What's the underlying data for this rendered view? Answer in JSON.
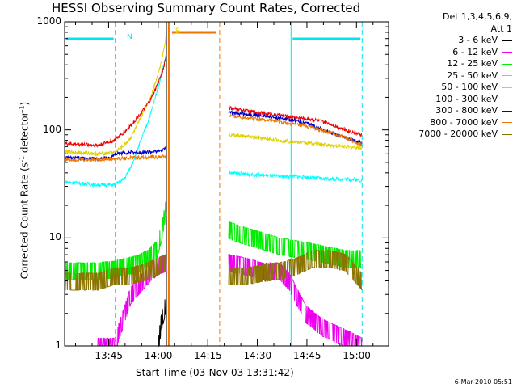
{
  "title": "HESSI Observing Summary Count Rates, Corrected",
  "legend_header": [
    "Det 1,3,4,5,6,9,",
    "Att 1"
  ],
  "xlabel": "Start Time (03-Nov-03 13:31:42)",
  "ylabel_main": "Corrected Count Rate (s",
  "ylabel_sup1": "-1",
  "ylabel_mid": " detector",
  "ylabel_sup2": "-1",
  "ylabel_end": ")",
  "timestamp": "6-Mar-2010 05:51",
  "segment_labels": [
    "N",
    "S"
  ],
  "colors": {
    "frame": "#000000",
    "cyan_marker": "#00e5ee",
    "orange_marker": "#ee7600"
  },
  "chart_data": {
    "type": "line",
    "x_unit": "minutes after 13:31:42",
    "xlim": [
      0,
      98
    ],
    "ylim": [
      1,
      1000
    ],
    "yscale": "log",
    "x_tick_labels": [
      "13:45",
      "14:00",
      "14:15",
      "14:30",
      "14:45",
      "15:00"
    ],
    "x_tick_values": [
      13.3,
      28.3,
      43.3,
      58.3,
      73.3,
      88.3
    ],
    "y_tick_labels": [
      "1",
      "10",
      "100",
      "1000"
    ],
    "y_tick_values": [
      1,
      10,
      100,
      1000
    ],
    "night_intervals": [
      [
        0,
        15.3
      ],
      [
        68.5,
        90
      ]
    ],
    "saa_intervals": [
      [
        31.5,
        46.9
      ]
    ],
    "data_gap": [
      31.5,
      49.5
    ],
    "series": [
      {
        "name": "3 - 6 keV",
        "color": "#000000",
        "x": [
          28.3,
          29.0,
          29.5,
          30.2,
          30.8
        ],
        "y": [
          1.0,
          1.5,
          1.8,
          2.2,
          2.6
        ]
      },
      {
        "name": "6 - 12 keV",
        "color": "#ee00ee",
        "x": [
          10,
          15,
          20,
          25,
          28,
          30.8,
          49.5,
          55,
          60,
          65,
          68,
          70,
          73,
          78,
          85,
          90
        ],
        "y": [
          1.0,
          1.0,
          3.0,
          4.5,
          5.5,
          6.0,
          6.0,
          5.5,
          5.0,
          5.0,
          4.0,
          3.0,
          2.0,
          1.5,
          1.2,
          1.0
        ]
      },
      {
        "name": "12 - 25 keV",
        "color": "#00ee00",
        "x": [
          0,
          10,
          15,
          18,
          22,
          25,
          28,
          29.5,
          30.8,
          49.5,
          55,
          60,
          65,
          70,
          75,
          80,
          85,
          90
        ],
        "y": [
          5.0,
          5.0,
          5.2,
          5.5,
          5.8,
          6.5,
          8.0,
          12.0,
          20.0,
          12.0,
          10.5,
          9.5,
          8.5,
          8.0,
          7.5,
          7.0,
          6.5,
          6.5
        ]
      },
      {
        "name": "25 - 50 keV",
        "color": "#00ffff",
        "x": [
          0,
          10,
          15,
          18,
          20,
          22,
          24,
          26,
          27,
          28,
          29,
          30,
          30.8,
          49.5,
          55,
          60,
          65,
          70,
          75,
          80,
          85,
          90
        ],
        "y": [
          33,
          31,
          31,
          35,
          45,
          65,
          95,
          140,
          180,
          230,
          300,
          400,
          500,
          40,
          39,
          38,
          37,
          37,
          36,
          35,
          35,
          34
        ]
      },
      {
        "name": "50 - 100 keV",
        "color": "#e0d000",
        "x": [
          0,
          10,
          15,
          18,
          20,
          22,
          24,
          26,
          27,
          28,
          29,
          30,
          30.8,
          49.5,
          55,
          60,
          65,
          70,
          75,
          80,
          85,
          90
        ],
        "y": [
          63,
          60,
          62,
          72,
          85,
          110,
          150,
          200,
          250,
          310,
          400,
          560,
          760,
          90,
          87,
          83,
          80,
          77,
          75,
          72,
          70,
          68
        ]
      },
      {
        "name": "100 - 300 keV",
        "color": "#ee0000",
        "x": [
          0,
          10,
          15,
          18,
          20,
          22,
          24,
          26,
          27,
          28,
          29,
          30,
          30.8,
          49.5,
          55,
          60,
          65,
          70,
          75,
          80,
          85,
          90
        ],
        "y": [
          75,
          72,
          80,
          95,
          110,
          130,
          155,
          190,
          220,
          260,
          310,
          380,
          510,
          160,
          150,
          143,
          136,
          130,
          125,
          115,
          100,
          90
        ]
      },
      {
        "name": "300 - 800 keV",
        "color": "#0000cc",
        "x": [
          0,
          10,
          14,
          15,
          20,
          25,
          28,
          30,
          30.8,
          49.5,
          55,
          60,
          65,
          70,
          75,
          80,
          85,
          90
        ],
        "y": [
          55,
          54,
          55,
          60,
          62,
          62,
          63,
          65,
          75,
          145,
          140,
          135,
          128,
          122,
          110,
          95,
          85,
          75
        ]
      },
      {
        "name": "800 - 7000 keV",
        "color": "#ee7600",
        "x": [
          0,
          10,
          15,
          20,
          25,
          28,
          30.8,
          49.5,
          55,
          60,
          65,
          70,
          75,
          80,
          85,
          90
        ],
        "y": [
          53,
          53,
          54,
          55,
          56,
          56,
          57,
          135,
          130,
          125,
          118,
          112,
          105,
          95,
          85,
          72
        ]
      },
      {
        "name": "7000 - 20000 keV",
        "color": "#8b7500",
        "x": [
          0,
          10,
          15,
          20,
          25,
          28,
          30.8,
          49.5,
          55,
          60,
          65,
          70,
          75,
          80,
          85,
          90
        ],
        "y": [
          4.0,
          4.0,
          4.5,
          4.5,
          5.0,
          5.5,
          6.0,
          4.5,
          4.5,
          4.8,
          5.0,
          5.5,
          6.5,
          6.5,
          6.0,
          4.0
        ]
      }
    ]
  }
}
